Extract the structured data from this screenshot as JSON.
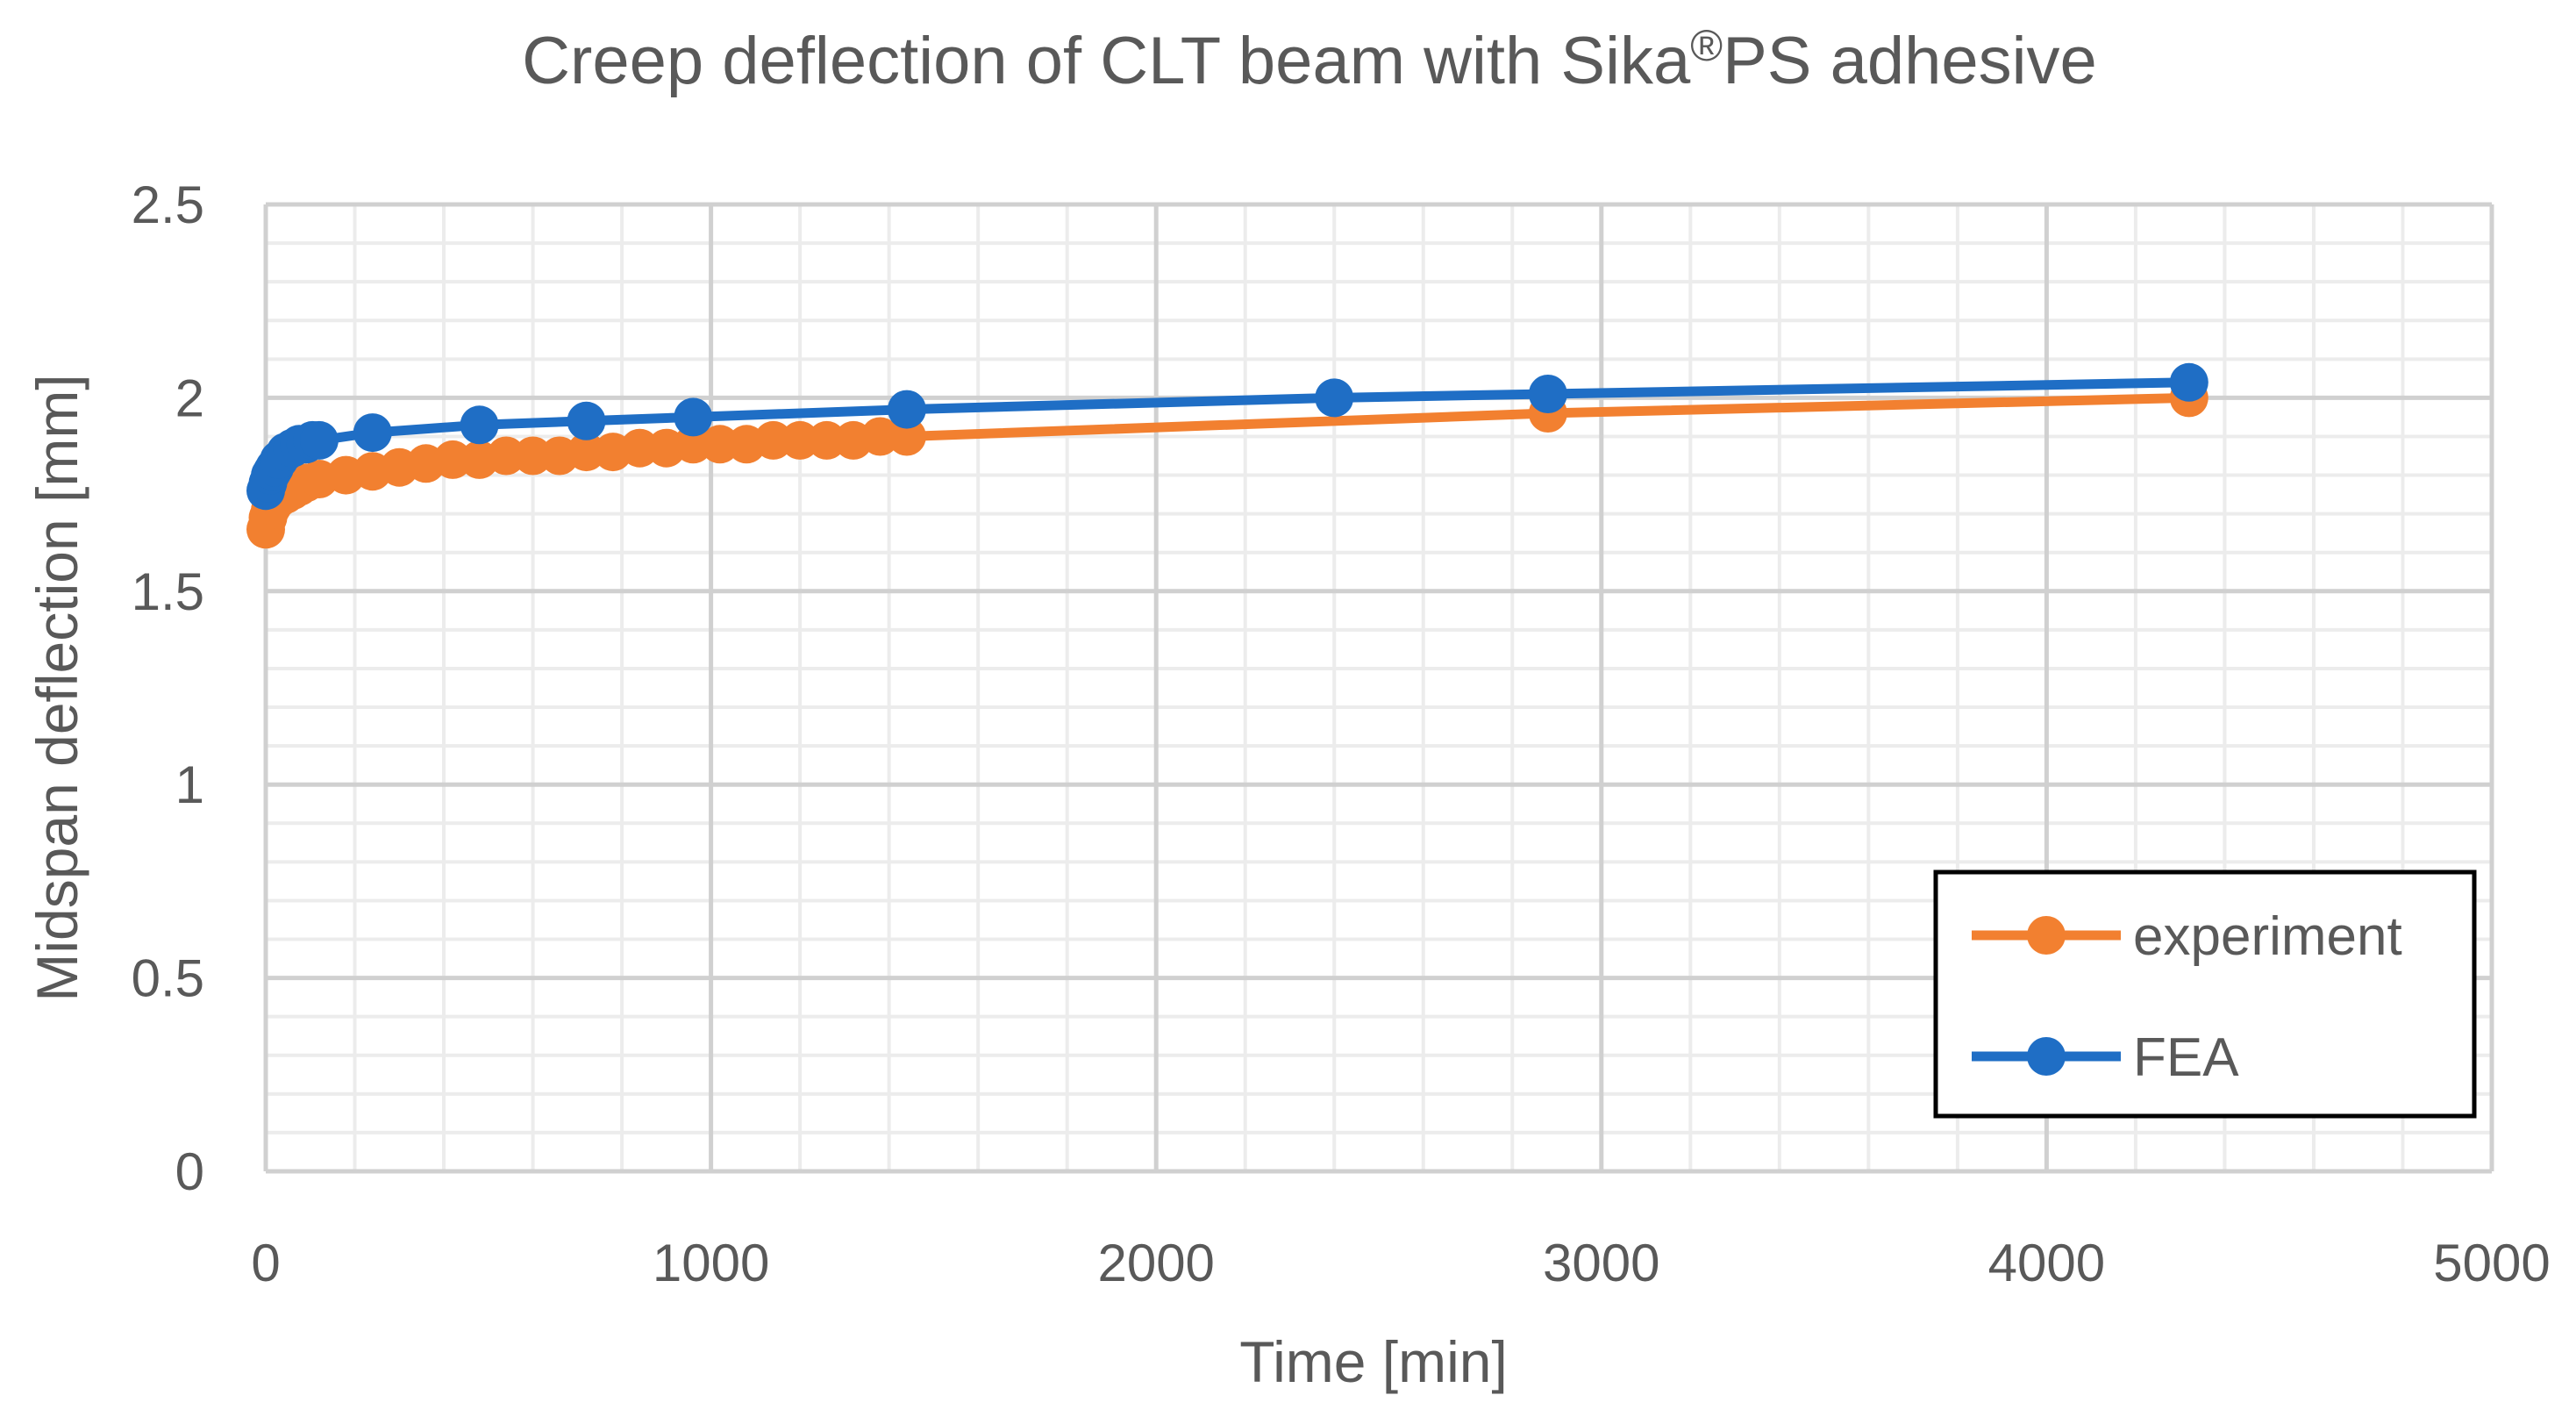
{
  "chart_data": {
    "type": "line",
    "title": "Creep deflection of CLT beam with Sika®PS adhesive",
    "title_parts": {
      "main": "Creep deflection of CLT beam with Sika",
      "sup": "®",
      "tail": "PS adhesive"
    },
    "xlabel": "Time [min]",
    "ylabel": "Midspan deflection [mm]",
    "xlim": [
      0,
      5000
    ],
    "ylim": [
      0,
      2.5
    ],
    "x_ticks": [
      "0",
      "1000",
      "2000",
      "3000",
      "4000",
      "5000"
    ],
    "y_ticks": [
      "0",
      "0.5",
      "1",
      "1.5",
      "2",
      "2.5"
    ],
    "grid": true,
    "legend_position": "bottom-right",
    "series": [
      {
        "name": "experiment",
        "color": "#F28030",
        "points": [
          [
            0,
            1.66
          ],
          [
            5,
            1.69
          ],
          [
            10,
            1.71
          ],
          [
            15,
            1.72
          ],
          [
            20,
            1.73
          ],
          [
            30,
            1.74
          ],
          [
            45,
            1.75
          ],
          [
            60,
            1.76
          ],
          [
            75,
            1.77
          ],
          [
            90,
            1.78
          ],
          [
            120,
            1.79
          ],
          [
            180,
            1.8
          ],
          [
            240,
            1.81
          ],
          [
            300,
            1.82
          ],
          [
            360,
            1.83
          ],
          [
            420,
            1.84
          ],
          [
            480,
            1.84
          ],
          [
            540,
            1.85
          ],
          [
            600,
            1.85
          ],
          [
            660,
            1.85
          ],
          [
            720,
            1.86
          ],
          [
            780,
            1.86
          ],
          [
            840,
            1.87
          ],
          [
            900,
            1.87
          ],
          [
            960,
            1.88
          ],
          [
            1020,
            1.88
          ],
          [
            1080,
            1.88
          ],
          [
            1140,
            1.89
          ],
          [
            1200,
            1.89
          ],
          [
            1260,
            1.89
          ],
          [
            1320,
            1.89
          ],
          [
            1380,
            1.9
          ],
          [
            1440,
            1.9
          ],
          [
            2880,
            1.96
          ],
          [
            4320,
            2.0
          ]
        ]
      },
      {
        "name": "FEA",
        "color": "#1F6EC5",
        "points": [
          [
            0,
            1.76
          ],
          [
            5,
            1.78
          ],
          [
            10,
            1.8
          ],
          [
            15,
            1.81
          ],
          [
            20,
            1.82
          ],
          [
            30,
            1.84
          ],
          [
            45,
            1.86
          ],
          [
            60,
            1.87
          ],
          [
            75,
            1.88
          ],
          [
            90,
            1.88
          ],
          [
            105,
            1.89
          ],
          [
            120,
            1.89
          ],
          [
            240,
            1.91
          ],
          [
            480,
            1.93
          ],
          [
            720,
            1.94
          ],
          [
            960,
            1.95
          ],
          [
            1440,
            1.97
          ],
          [
            2400,
            2.0
          ],
          [
            2880,
            2.01
          ],
          [
            4320,
            2.04
          ]
        ]
      }
    ]
  }
}
